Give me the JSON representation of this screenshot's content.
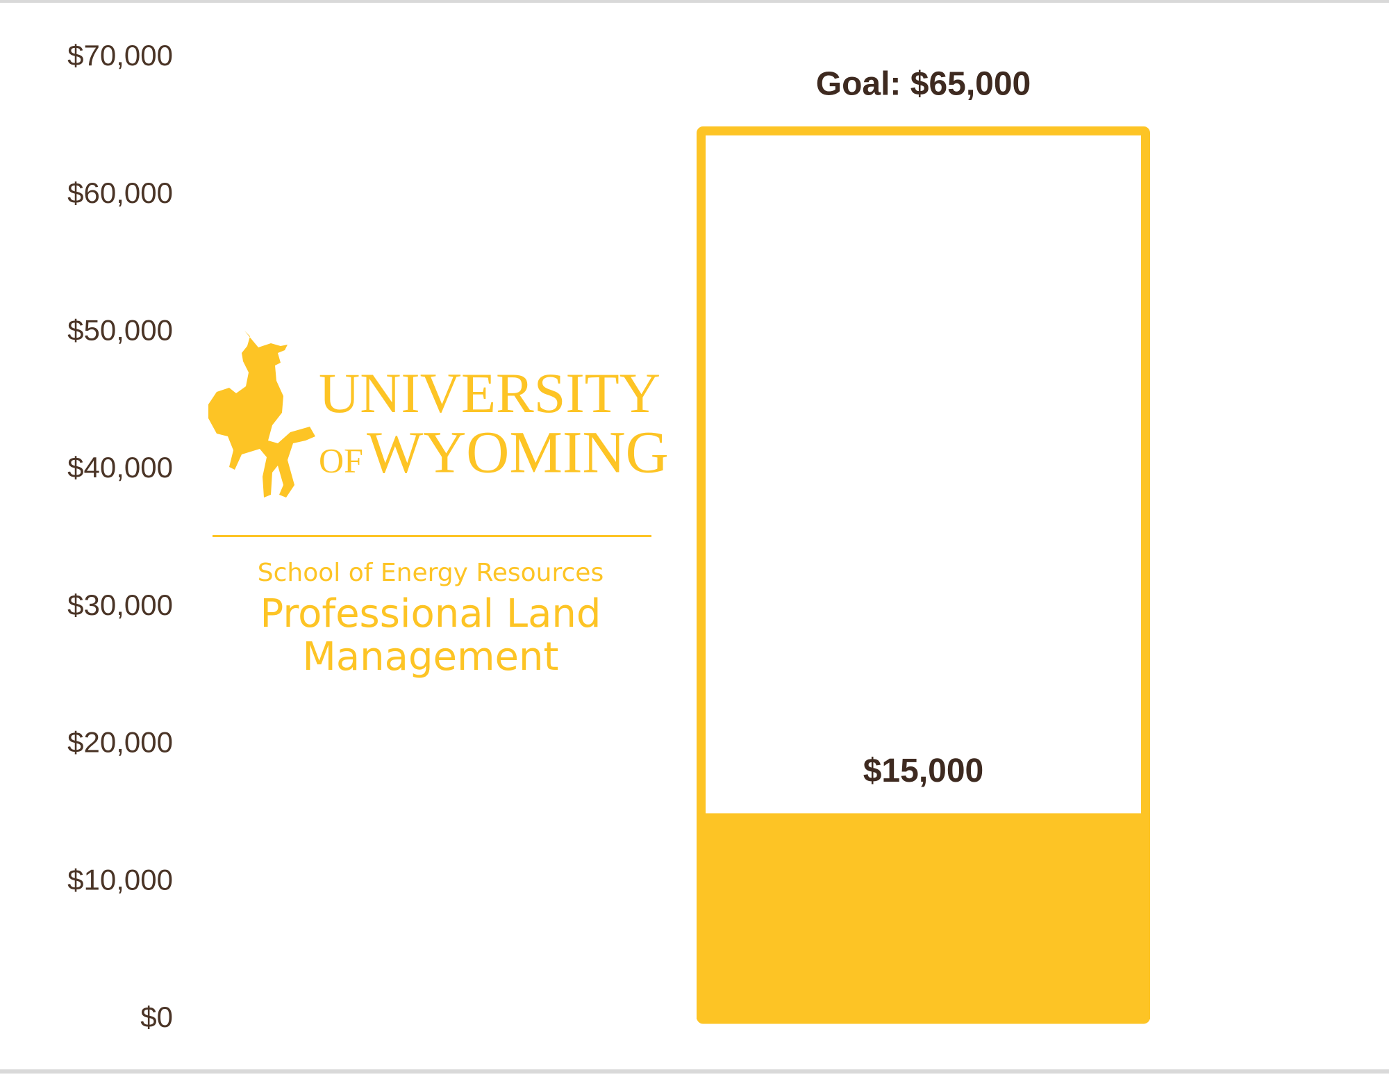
{
  "chart_data": {
    "type": "goal",
    "values": [
      15000
    ],
    "value_labels": [
      "$15,000"
    ],
    "goal": 65000,
    "goal_label": "Goal: $65,000",
    "color": "#fdc425",
    "ylim": [
      0,
      70000
    ],
    "yticks": [
      {
        "value": 0,
        "label": "$0"
      },
      {
        "value": 10000,
        "label": "$10,000"
      },
      {
        "value": 20000,
        "label": "$20,000"
      },
      {
        "value": 30000,
        "label": "$30,000"
      },
      {
        "value": 40000,
        "label": "$40,000"
      },
      {
        "value": 50000,
        "label": "$50,000"
      },
      {
        "value": 60000,
        "label": "$60,000"
      },
      {
        "value": 70000,
        "label": "$70,000"
      }
    ]
  },
  "logo": {
    "university": "UNIVERSITY",
    "of": "OF",
    "wyoming": "WYOMING",
    "school": "School of Energy Resources",
    "program": [
      "Professional Land",
      "Management"
    ]
  }
}
